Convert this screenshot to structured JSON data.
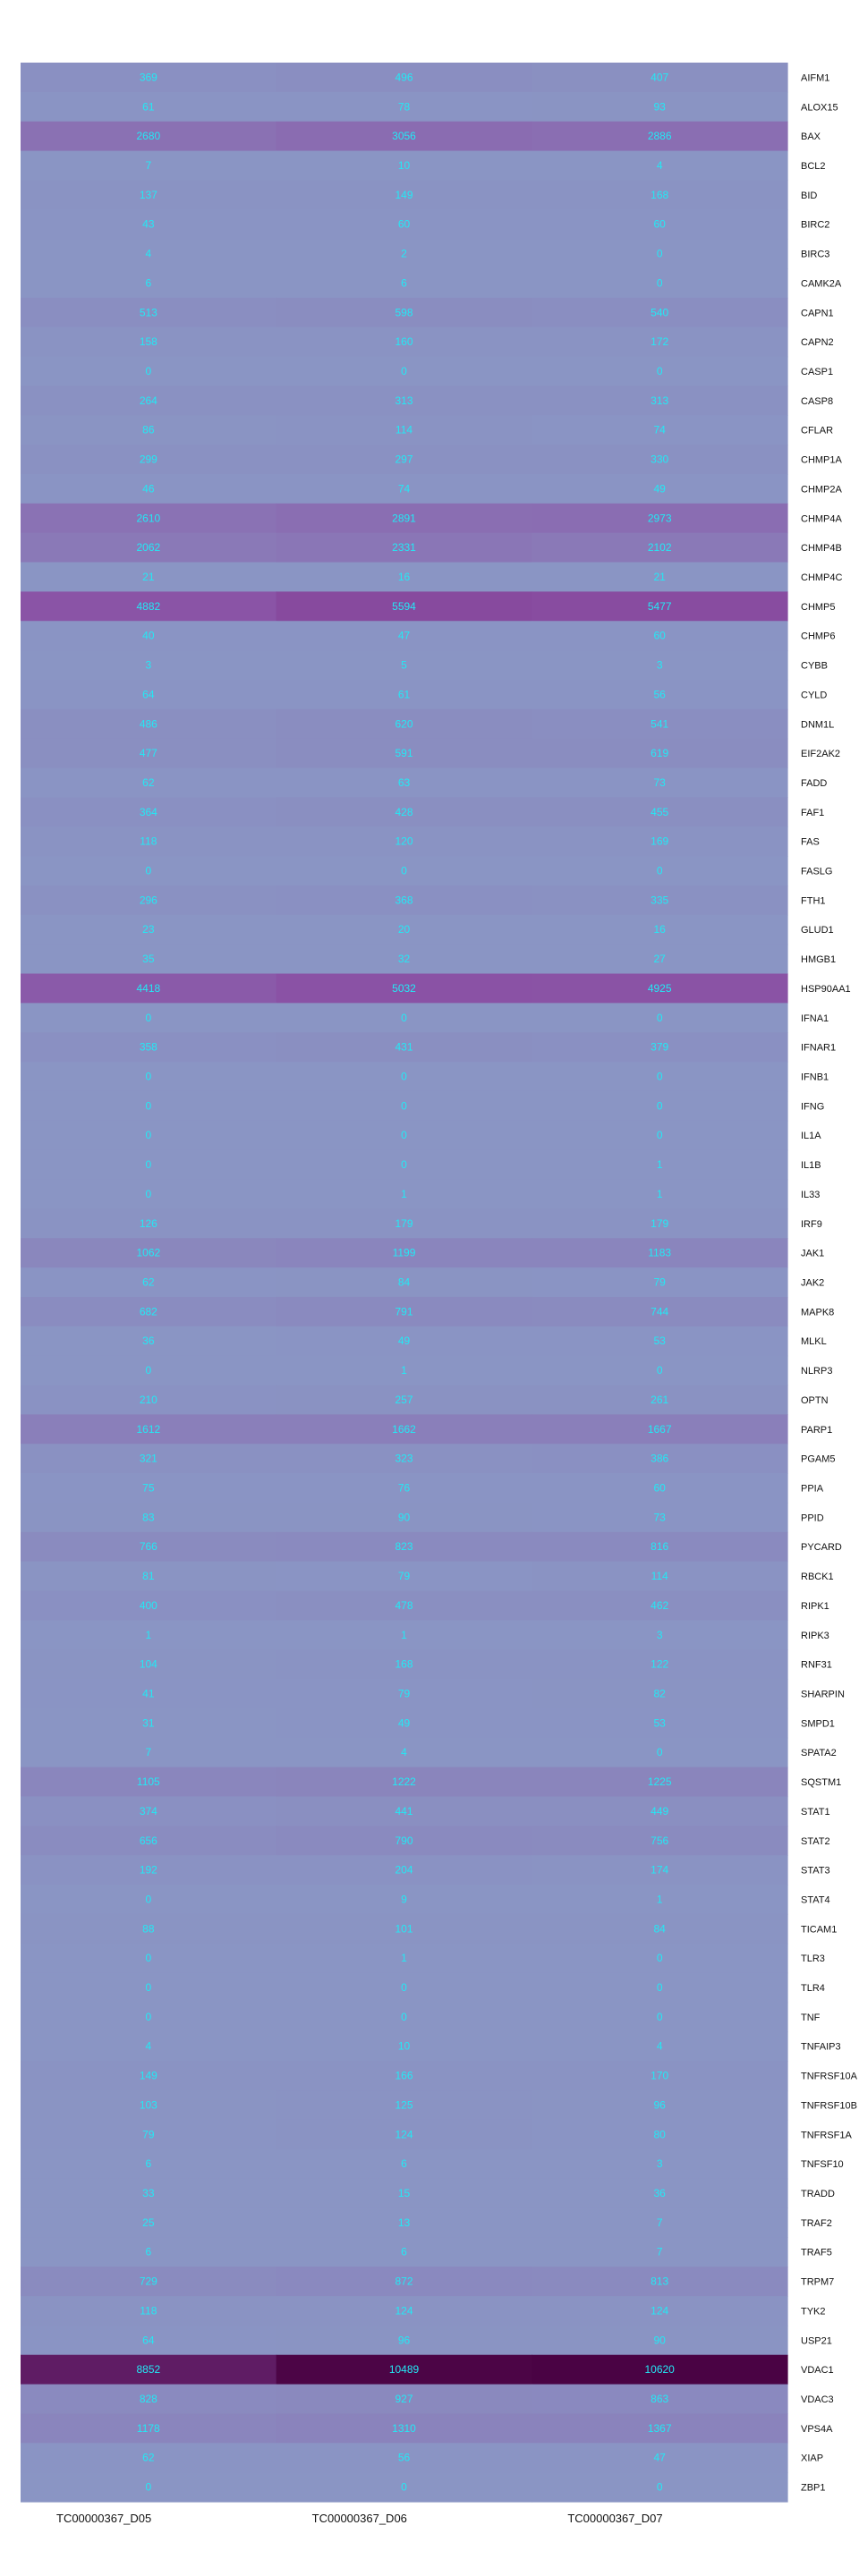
{
  "chart_data": {
    "type": "heatmap",
    "columns": [
      "TC00000367_D05",
      "TC00000367_D06",
      "TC00000367_D07"
    ],
    "rows": [
      {
        "gene": "AIFM1",
        "values": [
          369,
          496,
          407
        ]
      },
      {
        "gene": "ALOX15",
        "values": [
          61,
          78,
          93
        ]
      },
      {
        "gene": "BAX",
        "values": [
          2680,
          3056,
          2886
        ]
      },
      {
        "gene": "BCL2",
        "values": [
          7,
          10,
          4
        ]
      },
      {
        "gene": "BID",
        "values": [
          137,
          149,
          168
        ]
      },
      {
        "gene": "BIRC2",
        "values": [
          43,
          60,
          60
        ]
      },
      {
        "gene": "BIRC3",
        "values": [
          4,
          2,
          0
        ]
      },
      {
        "gene": "CAMK2A",
        "values": [
          6,
          6,
          0
        ]
      },
      {
        "gene": "CAPN1",
        "values": [
          513,
          598,
          540
        ]
      },
      {
        "gene": "CAPN2",
        "values": [
          158,
          160,
          172
        ]
      },
      {
        "gene": "CASP1",
        "values": [
          0,
          0,
          0
        ]
      },
      {
        "gene": "CASP8",
        "values": [
          264,
          313,
          313
        ]
      },
      {
        "gene": "CFLAR",
        "values": [
          86,
          114,
          74
        ]
      },
      {
        "gene": "CHMP1A",
        "values": [
          299,
          297,
          330
        ]
      },
      {
        "gene": "CHMP2A",
        "values": [
          46,
          74,
          49
        ]
      },
      {
        "gene": "CHMP4A",
        "values": [
          2610,
          2891,
          2973
        ]
      },
      {
        "gene": "CHMP4B",
        "values": [
          2062,
          2331,
          2102
        ]
      },
      {
        "gene": "CHMP4C",
        "values": [
          21,
          16,
          21
        ]
      },
      {
        "gene": "CHMP5",
        "values": [
          4882,
          5594,
          5477
        ]
      },
      {
        "gene": "CHMP6",
        "values": [
          40,
          47,
          60
        ]
      },
      {
        "gene": "CYBB",
        "values": [
          3,
          5,
          3
        ]
      },
      {
        "gene": "CYLD",
        "values": [
          64,
          61,
          56
        ]
      },
      {
        "gene": "DNM1L",
        "values": [
          486,
          620,
          541
        ]
      },
      {
        "gene": "EIF2AK2",
        "values": [
          477,
          591,
          619
        ]
      },
      {
        "gene": "FADD",
        "values": [
          62,
          63,
          73
        ]
      },
      {
        "gene": "FAF1",
        "values": [
          364,
          428,
          455
        ]
      },
      {
        "gene": "FAS",
        "values": [
          118,
          120,
          169
        ]
      },
      {
        "gene": "FASLG",
        "values": [
          0,
          0,
          0
        ]
      },
      {
        "gene": "FTH1",
        "values": [
          296,
          368,
          335
        ]
      },
      {
        "gene": "GLUD1",
        "values": [
          23,
          20,
          16
        ]
      },
      {
        "gene": "HMGB1",
        "values": [
          35,
          32,
          27
        ]
      },
      {
        "gene": "HSP90AA1",
        "values": [
          4418,
          5032,
          4925
        ]
      },
      {
        "gene": "IFNA1",
        "values": [
          0,
          0,
          0
        ]
      },
      {
        "gene": "IFNAR1",
        "values": [
          358,
          431,
          379
        ]
      },
      {
        "gene": "IFNB1",
        "values": [
          0,
          0,
          0
        ]
      },
      {
        "gene": "IFNG",
        "values": [
          0,
          0,
          0
        ]
      },
      {
        "gene": "IL1A",
        "values": [
          0,
          0,
          0
        ]
      },
      {
        "gene": "IL1B",
        "values": [
          0,
          0,
          1
        ]
      },
      {
        "gene": "IL33",
        "values": [
          0,
          1,
          1
        ]
      },
      {
        "gene": "IRF9",
        "values": [
          126,
          179,
          179
        ]
      },
      {
        "gene": "JAK1",
        "values": [
          1062,
          1199,
          1183
        ]
      },
      {
        "gene": "JAK2",
        "values": [
          62,
          84,
          79
        ]
      },
      {
        "gene": "MAPK8",
        "values": [
          682,
          791,
          744
        ]
      },
      {
        "gene": "MLKL",
        "values": [
          36,
          49,
          53
        ]
      },
      {
        "gene": "NLRP3",
        "values": [
          0,
          1,
          0
        ]
      },
      {
        "gene": "OPTN",
        "values": [
          210,
          257,
          261
        ]
      },
      {
        "gene": "PARP1",
        "values": [
          1612,
          1662,
          1667
        ]
      },
      {
        "gene": "PGAM5",
        "values": [
          321,
          323,
          386
        ]
      },
      {
        "gene": "PPIA",
        "values": [
          75,
          76,
          60
        ]
      },
      {
        "gene": "PPID",
        "values": [
          83,
          90,
          73
        ]
      },
      {
        "gene": "PYCARD",
        "values": [
          766,
          823,
          816
        ]
      },
      {
        "gene": "RBCK1",
        "values": [
          81,
          79,
          114
        ]
      },
      {
        "gene": "RIPK1",
        "values": [
          400,
          478,
          462
        ]
      },
      {
        "gene": "RIPK3",
        "values": [
          1,
          1,
          3
        ]
      },
      {
        "gene": "RNF31",
        "values": [
          104,
          168,
          122
        ]
      },
      {
        "gene": "SHARPIN",
        "values": [
          41,
          79,
          82
        ]
      },
      {
        "gene": "SMPD1",
        "values": [
          31,
          49,
          53
        ]
      },
      {
        "gene": "SPATA2",
        "values": [
          7,
          4,
          0
        ]
      },
      {
        "gene": "SQSTM1",
        "values": [
          1105,
          1222,
          1225
        ]
      },
      {
        "gene": "STAT1",
        "values": [
          374,
          441,
          449
        ]
      },
      {
        "gene": "STAT2",
        "values": [
          656,
          790,
          756
        ]
      },
      {
        "gene": "STAT3",
        "values": [
          192,
          204,
          174
        ]
      },
      {
        "gene": "STAT4",
        "values": [
          0,
          9,
          1
        ]
      },
      {
        "gene": "TICAM1",
        "values": [
          88,
          101,
          84
        ]
      },
      {
        "gene": "TLR3",
        "values": [
          0,
          1,
          0
        ]
      },
      {
        "gene": "TLR4",
        "values": [
          0,
          0,
          0
        ]
      },
      {
        "gene": "TNF",
        "values": [
          0,
          0,
          0
        ]
      },
      {
        "gene": "TNFAIP3",
        "values": [
          4,
          10,
          4
        ]
      },
      {
        "gene": "TNFRSF10A",
        "values": [
          149,
          166,
          170
        ]
      },
      {
        "gene": "TNFRSF10B",
        "values": [
          103,
          125,
          96
        ]
      },
      {
        "gene": "TNFRSF1A",
        "values": [
          79,
          124,
          80
        ]
      },
      {
        "gene": "TNFSF10",
        "values": [
          6,
          6,
          3
        ]
      },
      {
        "gene": "TRADD",
        "values": [
          33,
          15,
          36
        ]
      },
      {
        "gene": "TRAF2",
        "values": [
          25,
          13,
          7
        ]
      },
      {
        "gene": "TRAF5",
        "values": [
          6,
          6,
          7
        ]
      },
      {
        "gene": "TRPM7",
        "values": [
          729,
          872,
          813
        ]
      },
      {
        "gene": "TYK2",
        "values": [
          118,
          124,
          124
        ]
      },
      {
        "gene": "USP21",
        "values": [
          64,
          96,
          90
        ]
      },
      {
        "gene": "VDAC1",
        "values": [
          8852,
          10489,
          10620
        ]
      },
      {
        "gene": "VDAC3",
        "values": [
          828,
          927,
          863
        ]
      },
      {
        "gene": "VPS4A",
        "values": [
          1178,
          1310,
          1367
        ]
      },
      {
        "gene": "XIAP",
        "values": [
          62,
          56,
          47
        ]
      },
      {
        "gene": "ZBP1",
        "values": [
          0,
          0,
          0
        ]
      }
    ],
    "color_scale": {
      "low": "#8a95c4",
      "mid": "#8a4ea3",
      "high": "#4a0344"
    },
    "value_text_color": "#23e9f5",
    "label_text_color": "#111111"
  }
}
